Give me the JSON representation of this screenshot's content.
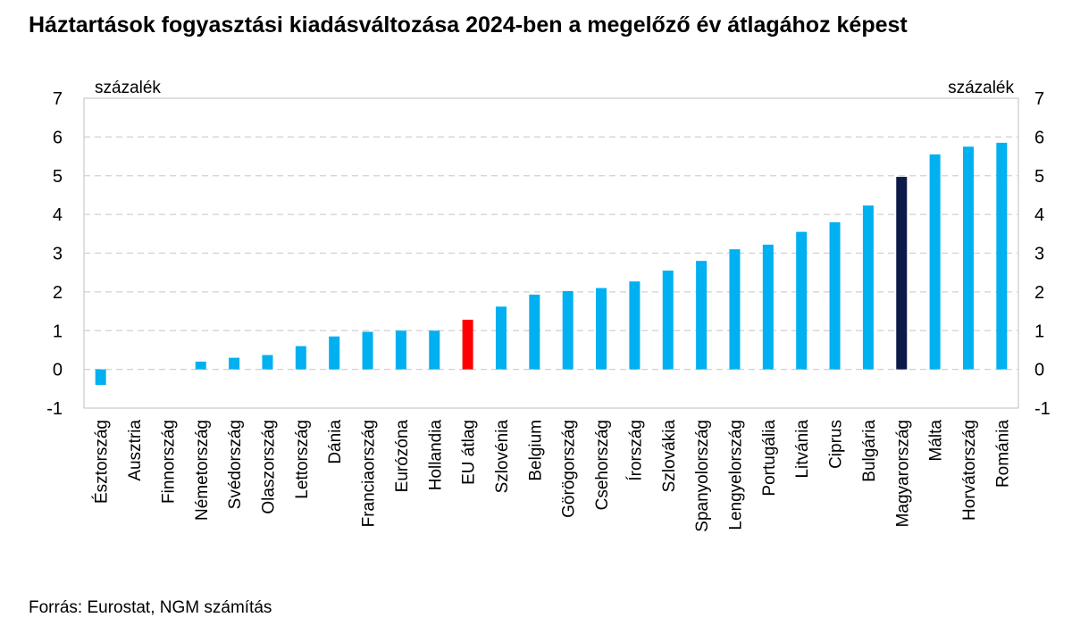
{
  "title": "Háztartások fogyasztási kiadásváltozása 2024-ben a megelőző év átlagához képest",
  "source": "Forrás: Eurostat, NGM számítás",
  "colors": {
    "default_bar": "#00b0f0",
    "eu_average_bar": "#ff0000",
    "hungary_bar": "#0c1a4a",
    "gridline": "#d0d0d0",
    "axis_frame": "#bfbfbf"
  },
  "chart_data": {
    "type": "bar",
    "title": "Háztartások fogyasztási kiadásváltozása 2024-ben a megelőző év átlagához képest",
    "ylabel_left": "százalék",
    "ylabel_right": "százalék",
    "xlabel": "",
    "ylim": [
      -1,
      7
    ],
    "yticks": [
      -1,
      0,
      1,
      2,
      3,
      4,
      5,
      6,
      7
    ],
    "grid": true,
    "categories": [
      "Észtország",
      "Ausztria",
      "Finnország",
      "Németország",
      "Svédország",
      "Olaszország",
      "Lettország",
      "Dánia",
      "Franciaország",
      "Eurózóna",
      "Hollandia",
      "EU átlag",
      "Szlovénia",
      "Belgium",
      "Görögország",
      "Csehország",
      "Írország",
      "Szlovákia",
      "Spanyolország",
      "Lengyelország",
      "Portugália",
      "Litvánia",
      "Ciprus",
      "Bulgária",
      "Magyarország",
      "Málta",
      "Horvátország",
      "Románia"
    ],
    "values": [
      -0.4,
      0.0,
      0.0,
      0.2,
      0.3,
      0.37,
      0.6,
      0.85,
      0.97,
      1.0,
      1.0,
      1.28,
      1.62,
      1.93,
      2.02,
      2.1,
      2.27,
      2.55,
      2.8,
      3.1,
      3.22,
      3.55,
      3.8,
      4.23,
      4.97,
      5.55,
      5.75,
      5.85
    ],
    "highlights": {
      "EU átlag": "eu_average_bar",
      "Magyarország": "hungary_bar"
    }
  }
}
